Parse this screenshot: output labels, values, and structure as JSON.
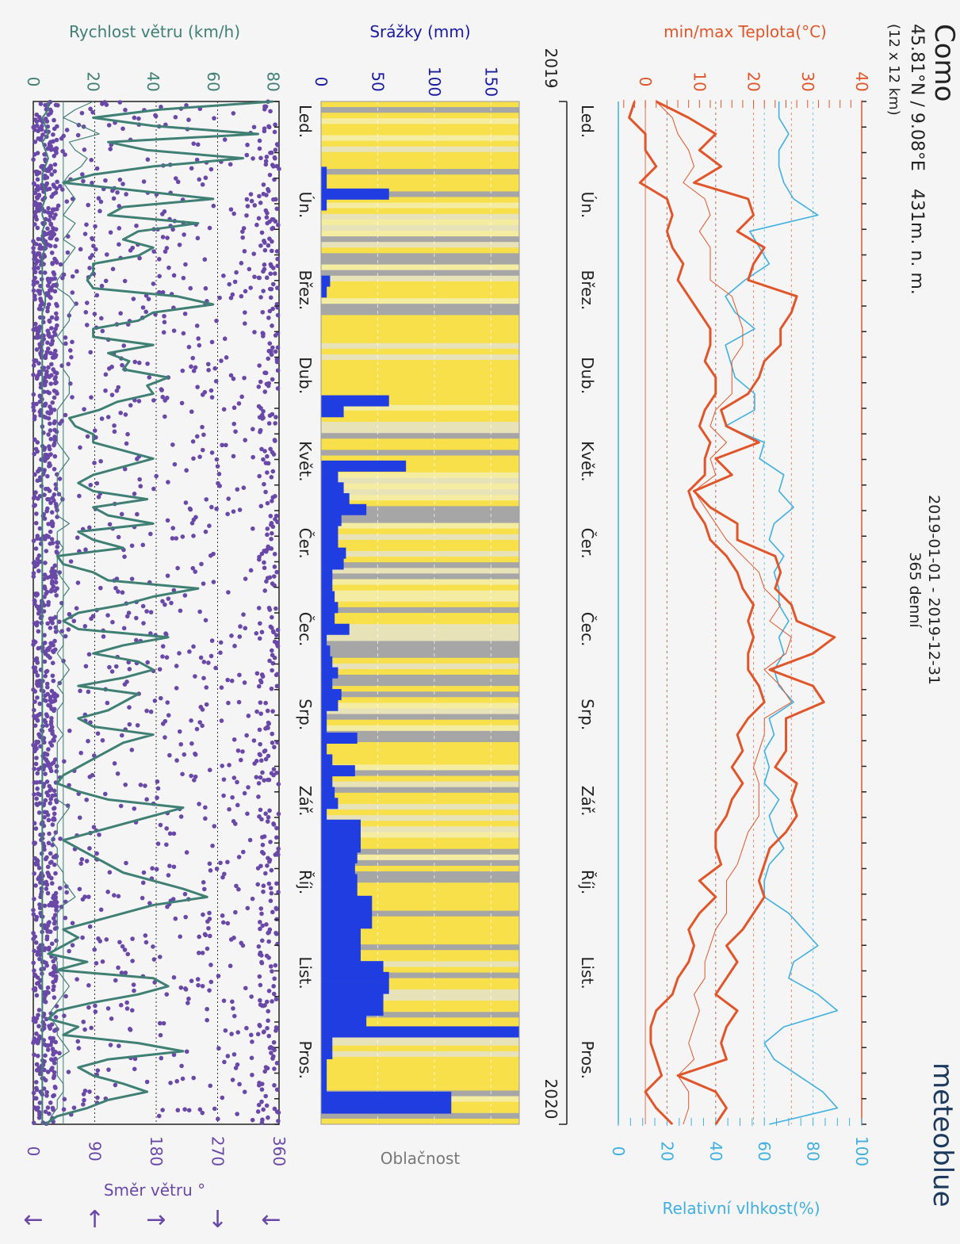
{
  "header": {
    "location": "Como",
    "coords": "45.81°N / 9.08°E",
    "elevation": "431m. n. m.",
    "grid": "(12 x 12 km)",
    "period": "2019-01-01 - 2019-12-31",
    "days": "365 denní",
    "brand": "meteoblue"
  },
  "colors": {
    "temp": "#e0562a",
    "humidity": "#3fb0e0",
    "precip": "#1f3de0",
    "precip_label": "#1a1aa0",
    "cloud_yellow": "#f8e04a",
    "cloud_grey": "#a6a6a6",
    "wind_line": "#3f7f74",
    "wind_dots": "#6a48a8"
  },
  "chart_data": [
    {
      "type": "line",
      "title": "",
      "months": [
        "Led.",
        "Ún.",
        "Břez.",
        "Dub.",
        "Květ.",
        "Čer.",
        "Čec.",
        "Srp.",
        "Zář.",
        "Říj.",
        "List.",
        "Pros."
      ],
      "year_start": "2019",
      "year_end": "2020",
      "temp_axis": {
        "label": "min/max Teplota(°C)",
        "ticks": [
          0,
          10,
          20,
          30,
          40
        ],
        "ylim": [
          -5,
          40
        ]
      },
      "humidity_axis": {
        "label": "Relativní vlhkost(%)",
        "ticks": [
          0,
          20,
          40,
          60,
          80,
          100
        ],
        "ylim": [
          0,
          100
        ]
      },
      "series": [
        {
          "name": "max",
          "values": [
            2,
            8,
            13,
            10,
            14,
            9,
            19,
            20,
            17,
            22,
            20,
            19,
            28,
            27,
            25,
            25,
            22,
            21,
            19,
            14,
            15,
            21,
            13,
            16,
            9,
            12,
            17,
            17,
            24,
            25,
            24,
            27,
            28,
            35,
            31,
            23,
            31,
            33,
            26,
            26,
            26,
            24,
            28,
            27,
            28,
            26,
            23,
            22,
            21,
            22,
            20,
            18,
            15,
            17,
            15,
            13,
            17,
            15,
            14,
            15,
            6,
            13,
            15,
            13
          ]
        },
        {
          "name": "min",
          "values": [
            -2,
            -3,
            0,
            0,
            2,
            -1,
            4,
            5,
            4,
            5,
            7,
            6,
            8,
            10,
            12,
            12,
            11,
            13,
            13,
            11,
            10,
            12,
            11,
            11,
            8,
            9,
            11,
            12,
            15,
            17,
            18,
            20,
            19,
            20,
            19,
            19,
            21,
            22,
            19,
            17,
            18,
            16,
            18,
            16,
            15,
            13,
            13,
            14,
            10,
            13,
            10,
            8,
            9,
            8,
            6,
            5,
            2,
            1,
            1,
            2,
            3,
            0,
            2,
            5
          ]
        },
        {
          "name": "mean",
          "values": [
            2,
            5,
            6,
            8,
            9,
            7,
            11,
            12,
            10,
            12,
            12,
            12,
            16,
            17,
            18,
            18,
            16,
            16,
            16,
            13,
            12,
            15,
            12,
            13,
            9,
            11,
            13,
            15,
            18,
            21,
            22,
            25,
            23,
            27,
            26,
            22,
            25,
            27,
            22,
            22,
            21,
            20,
            21,
            21,
            21,
            19,
            18,
            17,
            15,
            15,
            15,
            13,
            12,
            11,
            11,
            9,
            10,
            9,
            8,
            9,
            6,
            8,
            8,
            7
          ]
        },
        {
          "name": "humidity",
          "values": [
            66,
            66,
            70,
            66,
            66,
            68,
            72,
            82,
            54,
            58,
            62,
            52,
            44,
            48,
            56,
            44,
            46,
            48,
            56,
            56,
            44,
            60,
            58,
            68,
            66,
            72,
            64,
            62,
            68,
            64,
            66,
            66,
            70,
            66,
            68,
            64,
            66,
            72,
            62,
            64,
            60,
            62,
            60,
            66,
            62,
            64,
            68,
            62,
            60,
            60,
            70,
            76,
            82,
            72,
            70,
            82,
            90,
            68,
            60,
            64,
            74,
            84,
            90,
            62
          ]
        }
      ],
      "reference_lines": [
        0,
        4,
        13,
        20,
        27
      ]
    },
    {
      "type": "bar",
      "title": "",
      "ylabel": "Srážky (mm)",
      "ticks": [
        0,
        50,
        100,
        150
      ],
      "ylim": [
        0,
        175
      ],
      "cloud_label": "Oblačnost",
      "values": [
        0,
        0,
        0,
        0,
        0,
        0,
        5,
        5,
        60,
        5,
        0,
        0,
        0,
        0,
        0,
        0,
        8,
        5,
        0,
        0,
        0,
        0,
        0,
        0,
        0,
        0,
        0,
        60,
        20,
        0,
        0,
        0,
        0,
        75,
        15,
        20,
        25,
        40,
        18,
        15,
        15,
        22,
        20,
        10,
        10,
        12,
        15,
        12,
        25,
        5,
        8,
        10,
        15,
        10,
        18,
        15,
        5,
        5,
        32,
        5,
        10,
        30,
        10,
        12,
        15,
        5,
        35,
        35,
        35,
        32,
        30,
        32,
        32,
        45,
        45,
        45,
        35,
        35,
        35,
        55,
        60,
        60,
        55,
        55,
        40,
        175,
        10,
        10,
        5,
        5,
        5,
        115,
        115,
        0
      ]
    },
    {
      "type": "scatter",
      "title": "",
      "speed_axis": {
        "label": "Rychlost větru (km/h)",
        "ticks": [
          0,
          20,
          40,
          60,
          80
        ],
        "ylim": [
          0,
          82
        ]
      },
      "direction_axis": {
        "label": "Směr větru °",
        "ticks": [
          0,
          90,
          180,
          270,
          360
        ],
        "ylim": [
          0,
          360
        ]
      },
      "direction_arrows": [
        "←",
        "↑",
        "→",
        "↓",
        "←"
      ],
      "series": [
        {
          "name": "max",
          "values": [
            80,
            42,
            20,
            40,
            75,
            25,
            38,
            70,
            40,
            20,
            10,
            35,
            60,
            30,
            25,
            55,
            35,
            30,
            40,
            35,
            20,
            20,
            18,
            20,
            48,
            60,
            40,
            35,
            20,
            20,
            40,
            25,
            32,
            30,
            45,
            38,
            40,
            28,
            22,
            12,
            14,
            20,
            20,
            30,
            40,
            30,
            20,
            15,
            20,
            38,
            20,
            25,
            40,
            15,
            20,
            30,
            8,
            10,
            20,
            25,
            55,
            40,
            30,
            15,
            10,
            15,
            45,
            30,
            20,
            35,
            40,
            30,
            15,
            35,
            30,
            25,
            15,
            20,
            40,
            30,
            25,
            20,
            15,
            10,
            8,
            15,
            25,
            50,
            40,
            30,
            20,
            10,
            15,
            20,
            25,
            30,
            40,
            50,
            58,
            40,
            30,
            20,
            10,
            15,
            10,
            5,
            18,
            8,
            40,
            45,
            35,
            20,
            8,
            5,
            15,
            10,
            35,
            50,
            25,
            15,
            20,
            30,
            38,
            25,
            18,
            8,
            4
          ]
        },
        {
          "name": "mean",
          "values": [
            20,
            14,
            10,
            16,
            22,
            12,
            14,
            18,
            16,
            12,
            10,
            12,
            14,
            12,
            10,
            14,
            12,
            10,
            14,
            12,
            10,
            10,
            8,
            8,
            12,
            14,
            12,
            12,
            10,
            8,
            10,
            10,
            10,
            10,
            12,
            12,
            12,
            10,
            8,
            8,
            8,
            8,
            8,
            10,
            12,
            10,
            8,
            8,
            8,
            10,
            8,
            8,
            12,
            8,
            8,
            10,
            8,
            8,
            8,
            10,
            12,
            10,
            10,
            8,
            8,
            8,
            10,
            10,
            8,
            10,
            12,
            10,
            8,
            10,
            10,
            8,
            8,
            8,
            10,
            8,
            8,
            8,
            8,
            8,
            8,
            8,
            8,
            12,
            10,
            8,
            8,
            6,
            8,
            8,
            8,
            10,
            10,
            12,
            14,
            10,
            8,
            8,
            8,
            8,
            8,
            6,
            8,
            8,
            10,
            12,
            10,
            8,
            6,
            6,
            8,
            8,
            10,
            12,
            8,
            8,
            8,
            10,
            10,
            8,
            8,
            6,
            5
          ]
        },
        {
          "name": "min",
          "values": [
            5,
            5,
            3,
            4,
            5,
            3,
            4,
            5,
            4,
            3,
            3,
            4,
            4,
            3,
            3,
            4,
            3,
            3,
            4,
            3,
            3,
            3,
            3,
            3,
            4,
            4,
            3,
            3,
            3,
            3,
            3,
            3,
            3,
            3,
            3,
            3,
            3,
            3,
            3,
            3,
            3,
            3,
            3,
            3,
            3,
            3,
            3,
            3,
            3,
            3,
            3,
            3,
            3,
            3,
            3,
            3,
            3,
            3,
            3,
            3,
            3,
            3,
            3,
            3,
            3,
            3,
            3,
            3,
            3,
            3,
            3,
            3,
            3,
            3,
            3,
            3,
            3,
            3,
            3,
            3,
            3,
            3,
            3,
            3,
            3,
            3,
            3,
            3,
            3,
            3,
            3,
            3,
            3,
            3,
            3,
            3,
            3,
            3,
            3,
            3,
            3,
            3,
            3,
            3,
            3,
            3,
            3,
            3,
            3,
            3,
            3,
            3,
            3,
            3,
            3,
            3,
            3,
            3,
            3,
            3,
            3,
            3,
            3,
            3,
            3,
            3,
            3
          ]
        }
      ],
      "speed_reference_lines": [
        10
      ]
    }
  ]
}
